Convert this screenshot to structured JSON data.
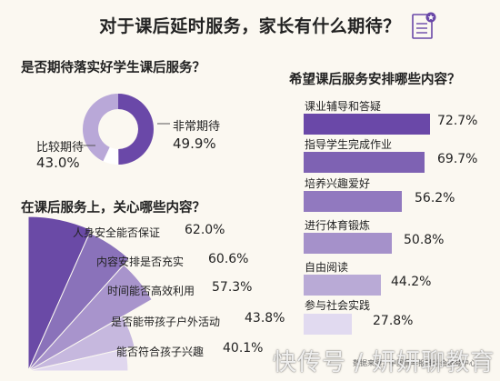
{
  "title": "对于课后延时服务，家长有什么期待？",
  "colors": {
    "very_expect": "#6a48a8",
    "somewhat_expect": "#b9a8d8",
    "fan": [
      "#6a4aa6",
      "#8a72ba",
      "#a894cc",
      "#c6b8de",
      "#e0d7ee"
    ],
    "bars": [
      "#6a48a8",
      "#7e62b3",
      "#9179bf",
      "#a591ca",
      "#b9aad6",
      "#e1daf0"
    ]
  },
  "chart_data": [
    {
      "type": "pie",
      "title": "是否期待落实好学生课后服务？",
      "slices": [
        {
          "label": "非常期待",
          "value": 49.9,
          "display": "49.9%"
        },
        {
          "label": "比较期待",
          "value": 43.0,
          "display": "43.0%"
        }
      ]
    },
    {
      "type": "bar",
      "title": "在课后服务上，关心哪些内容？",
      "categories": [
        "人身安全能否保证",
        "内容安排是否充实",
        "时间能否高效利用",
        "是否能带孩子户外活动",
        "能否符合孩子兴趣"
      ],
      "values": [
        62.0,
        60.6,
        57.3,
        43.8,
        40.1
      ],
      "display": [
        "62.0%",
        "60.6%",
        "57.3%",
        "43.8%",
        "40.1%"
      ]
    },
    {
      "type": "bar",
      "title": "希望课后服务安排哪些内容？",
      "categories": [
        "课业辅导和答疑",
        "指导学生完成作业",
        "培养兴趣爱好",
        "进行体育锻炼",
        "自由阅读",
        "参与社会实践"
      ],
      "values": [
        72.7,
        69.7,
        56.2,
        50.8,
        44.2,
        27.8
      ],
      "display": [
        "72.7%",
        "69.7%",
        "56.2%",
        "50.8%",
        "44.2%",
        "27.8%"
      ]
    }
  ],
  "source": "数据来源：中国青年报社社会调查中心",
  "watermark": "快传号 / 妍妍聊教育"
}
